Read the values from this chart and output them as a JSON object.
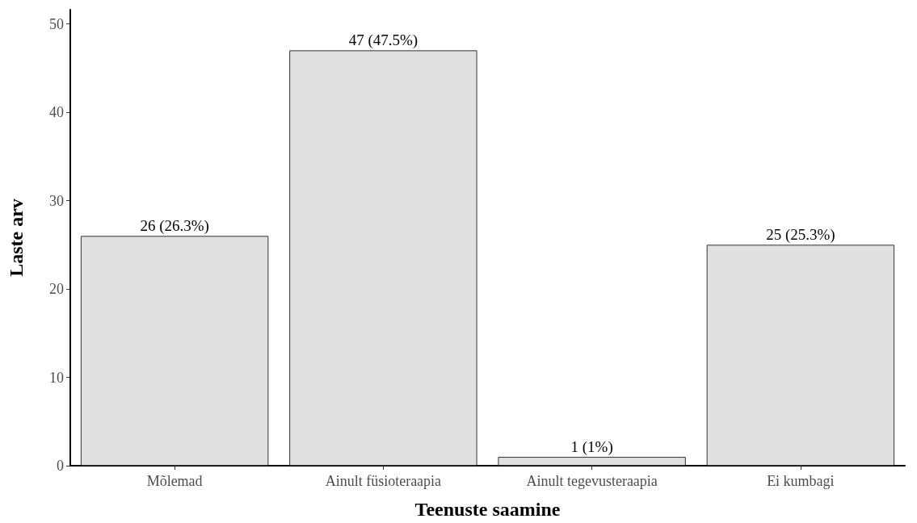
{
  "chart_data": {
    "type": "bar",
    "xlabel": "Teenuste saamine",
    "ylabel": "Laste arv",
    "categories": [
      "Mõlemad",
      "Ainult füsioteraapia",
      "Ainult tegevusteraapia",
      "Ei kumbagi"
    ],
    "values": [
      26,
      47,
      1,
      25
    ],
    "value_labels": [
      "26 (26.3%)",
      "47 (47.5%)",
      "1 (1%)",
      "25 (25.3%)"
    ],
    "color": "#e0e0e0",
    "ylim": [
      0,
      51.6
    ],
    "yticks": [
      0,
      10,
      20,
      30,
      40,
      50
    ],
    "grid": false
  }
}
